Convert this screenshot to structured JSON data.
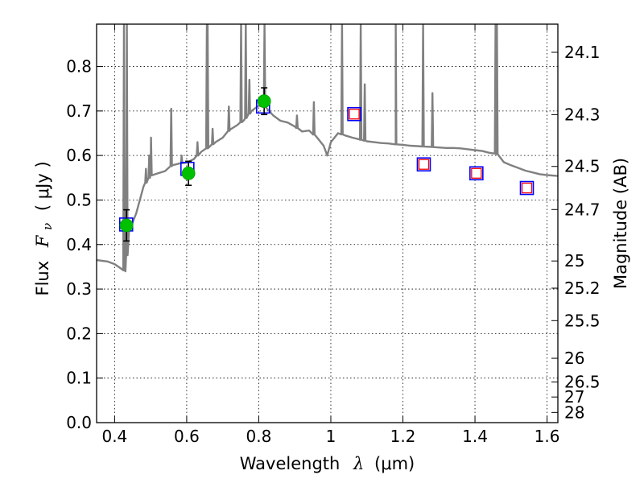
{
  "chart_data": {
    "type": "scatter",
    "x_axis": {
      "label_prefix": "Wavelength",
      "label_symbol": "λ",
      "label_units": "(μm)",
      "range": [
        0.35,
        1.63
      ],
      "ticks": [
        0.4,
        0.6,
        0.8,
        1.0,
        1.2,
        1.4,
        1.6
      ],
      "tick_labels": [
        "0.4",
        "0.6",
        "0.8",
        "1",
        "1.2",
        "1.4",
        "1.6"
      ]
    },
    "y_axis": {
      "label_prefix": "Flux",
      "label_symbol": "F",
      "label_subscript": "ν",
      "label_units": "( μJy )",
      "range": [
        0.0,
        0.895
      ],
      "ticks": [
        0.0,
        0.1,
        0.2,
        0.3,
        0.4,
        0.5,
        0.6,
        0.7,
        0.8
      ],
      "tick_labels": [
        "0.0",
        "0.1",
        "0.2",
        "0.3",
        "0.4",
        "0.5",
        "0.6",
        "0.7",
        "0.8"
      ]
    },
    "y2_axis": {
      "label": "Magnitude (AB)",
      "ticks": [
        24.1,
        24.3,
        24.5,
        24.7,
        25,
        25.2,
        25.5,
        26,
        26.5,
        27,
        28
      ],
      "tick_labels": [
        "24.1",
        "24.3",
        "24.5",
        "24.7",
        "25",
        "25.2",
        "25.5",
        "26",
        "26.5",
        "27",
        "28"
      ]
    },
    "grid": true,
    "series": [
      {
        "kind": "model-spectrum",
        "color": "#808080",
        "continuum": [
          [
            0.35,
            0.365
          ],
          [
            0.38,
            0.362
          ],
          [
            0.4,
            0.356
          ],
          [
            0.42,
            0.345
          ],
          [
            0.43,
            0.34
          ],
          [
            0.44,
            0.43
          ],
          [
            0.46,
            0.47
          ],
          [
            0.48,
            0.53
          ],
          [
            0.5,
            0.555
          ],
          [
            0.52,
            0.56
          ],
          [
            0.54,
            0.565
          ],
          [
            0.56,
            0.578
          ],
          [
            0.58,
            0.582
          ],
          [
            0.6,
            0.584
          ],
          [
            0.62,
            0.592
          ],
          [
            0.64,
            0.608
          ],
          [
            0.66,
            0.618
          ],
          [
            0.68,
            0.63
          ],
          [
            0.7,
            0.64
          ],
          [
            0.72,
            0.658
          ],
          [
            0.74,
            0.668
          ],
          [
            0.76,
            0.68
          ],
          [
            0.78,
            0.7
          ],
          [
            0.8,
            0.712
          ],
          [
            0.82,
            0.708
          ],
          [
            0.84,
            0.69
          ],
          [
            0.86,
            0.678
          ],
          [
            0.88,
            0.674
          ],
          [
            0.9,
            0.665
          ],
          [
            0.92,
            0.654
          ],
          [
            0.94,
            0.656
          ],
          [
            0.96,
            0.642
          ],
          [
            0.98,
            0.622
          ],
          [
            0.99,
            0.6
          ],
          [
            1.0,
            0.63
          ],
          [
            1.02,
            0.65
          ],
          [
            1.04,
            0.645
          ],
          [
            1.06,
            0.64
          ],
          [
            1.08,
            0.636
          ],
          [
            1.1,
            0.632
          ],
          [
            1.12,
            0.63
          ],
          [
            1.14,
            0.628
          ],
          [
            1.16,
            0.627
          ],
          [
            1.18,
            0.625
          ],
          [
            1.2,
            0.624
          ],
          [
            1.22,
            0.622
          ],
          [
            1.24,
            0.621
          ],
          [
            1.26,
            0.62
          ],
          [
            1.28,
            0.619
          ],
          [
            1.3,
            0.618
          ],
          [
            1.32,
            0.617
          ],
          [
            1.34,
            0.617
          ],
          [
            1.36,
            0.616
          ],
          [
            1.38,
            0.614
          ],
          [
            1.4,
            0.612
          ],
          [
            1.42,
            0.61
          ],
          [
            1.44,
            0.606
          ],
          [
            1.46,
            0.604
          ],
          [
            1.48,
            0.585
          ],
          [
            1.5,
            0.578
          ],
          [
            1.52,
            0.572
          ],
          [
            1.54,
            0.566
          ],
          [
            1.56,
            0.562
          ],
          [
            1.58,
            0.558
          ],
          [
            1.6,
            0.556
          ],
          [
            1.63,
            0.554
          ]
        ],
        "emission_lines": [
          [
            0.426,
            0.895
          ],
          [
            0.434,
            0.895
          ],
          [
            0.487,
            0.57
          ],
          [
            0.496,
            0.6
          ],
          [
            0.501,
            0.64
          ],
          [
            0.557,
            0.705
          ],
          [
            0.586,
            0.6
          ],
          [
            0.63,
            0.63
          ],
          [
            0.656,
            0.895
          ],
          [
            0.658,
            0.895
          ],
          [
            0.672,
            0.66
          ],
          [
            0.717,
            0.71
          ],
          [
            0.751,
            0.895
          ],
          [
            0.764,
            0.895
          ],
          [
            0.774,
            0.77
          ],
          [
            0.816,
            0.895
          ],
          [
            0.906,
            0.69
          ],
          [
            0.953,
            0.72
          ],
          [
            1.031,
            0.895
          ],
          [
            1.083,
            0.895
          ],
          [
            1.094,
            0.76
          ],
          [
            1.18,
            0.895
          ],
          [
            1.256,
            0.895
          ],
          [
            1.282,
            0.74
          ],
          [
            1.457,
            0.895
          ],
          [
            1.461,
            0.895
          ]
        ]
      },
      {
        "kind": "model-photometry",
        "marker": "open-square",
        "color": "#0000ff",
        "points": [
          [
            0.432,
            0.445
          ],
          [
            0.602,
            0.57
          ],
          [
            0.812,
            0.71
          ],
          [
            1.065,
            0.693
          ],
          [
            1.258,
            0.58
          ],
          [
            1.404,
            0.56
          ],
          [
            1.544,
            0.527
          ]
        ]
      },
      {
        "kind": "observed-detections",
        "marker": "filled-circle",
        "color": "#00c000",
        "errorbar_color": "#000000",
        "points": [
          {
            "x": 0.433,
            "y": 0.443,
            "err": 0.035
          },
          {
            "x": 0.605,
            "y": 0.56,
            "err": 0.027
          },
          {
            "x": 0.815,
            "y": 0.722,
            "err": 0.03
          }
        ]
      },
      {
        "kind": "observed-upper-limits",
        "marker": "open-square",
        "color": "#ff0000",
        "points": [
          [
            1.065,
            0.693
          ],
          [
            1.258,
            0.58
          ],
          [
            1.404,
            0.56
          ],
          [
            1.544,
            0.527
          ]
        ]
      }
    ]
  }
}
